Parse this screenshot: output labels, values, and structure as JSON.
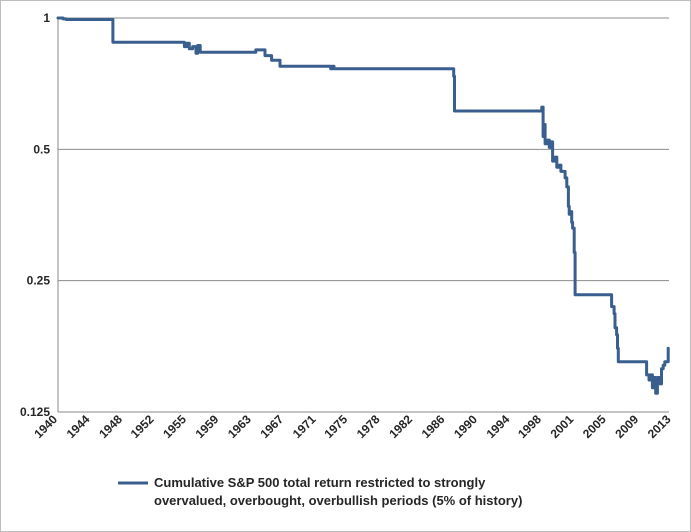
{
  "chart_data": {
    "type": "line",
    "title": "",
    "xlabel": "",
    "ylabel": "",
    "y_scale": "log2",
    "ylim": [
      0.125,
      1
    ],
    "xlim": [
      1940,
      2013.5
    ],
    "grid": "horizontal",
    "legend_position": "bottom",
    "y_ticks": [
      {
        "value": 1,
        "label": "1"
      },
      {
        "value": 0.5,
        "label": "0.5"
      },
      {
        "value": 0.25,
        "label": "0.25"
      },
      {
        "value": 0.125,
        "label": "0.125"
      }
    ],
    "x_ticks": [
      {
        "value": 1940.0,
        "label": "1940"
      },
      {
        "value": 1943.9,
        "label": "1944"
      },
      {
        "value": 1947.8,
        "label": "1948"
      },
      {
        "value": 1951.6,
        "label": "1952"
      },
      {
        "value": 1955.5,
        "label": "1955"
      },
      {
        "value": 1959.4,
        "label": "1959"
      },
      {
        "value": 1963.3,
        "label": "1963"
      },
      {
        "value": 1967.2,
        "label": "1967"
      },
      {
        "value": 1971.1,
        "label": "1971"
      },
      {
        "value": 1974.9,
        "label": "1975"
      },
      {
        "value": 1978.8,
        "label": "1978"
      },
      {
        "value": 1982.7,
        "label": "1982"
      },
      {
        "value": 1986.6,
        "label": "1986"
      },
      {
        "value": 1990.5,
        "label": "1990"
      },
      {
        "value": 1994.4,
        "label": "1994"
      },
      {
        "value": 1998.2,
        "label": "1998"
      },
      {
        "value": 2002.1,
        "label": "2001"
      },
      {
        "value": 2006.0,
        "label": "2005"
      },
      {
        "value": 2009.9,
        "label": "2009"
      },
      {
        "value": 2013.8,
        "label": "2013"
      }
    ],
    "series": [
      {
        "name": "Cumulative S&P 500 total return restricted to strongly overvalued, overbought, overbullish periods (5% of history)",
        "color": "#3a5f8f",
        "points": [
          [
            1940.0,
            1.0
          ],
          [
            1940.6,
            0.995
          ],
          [
            1941.0,
            0.992
          ],
          [
            1946.5,
            0.992
          ],
          [
            1946.6,
            0.88
          ],
          [
            1955.0,
            0.88
          ],
          [
            1955.2,
            0.86
          ],
          [
            1955.5,
            0.875
          ],
          [
            1955.8,
            0.85
          ],
          [
            1956.2,
            0.86
          ],
          [
            1956.6,
            0.83
          ],
          [
            1956.8,
            0.865
          ],
          [
            1957.1,
            0.835
          ],
          [
            1963.6,
            0.835
          ],
          [
            1963.8,
            0.845
          ],
          [
            1964.7,
            0.845
          ],
          [
            1964.9,
            0.82
          ],
          [
            1965.5,
            0.82
          ],
          [
            1965.7,
            0.8
          ],
          [
            1966.5,
            0.8
          ],
          [
            1966.7,
            0.775
          ],
          [
            1972.6,
            0.775
          ],
          [
            1972.8,
            0.765
          ],
          [
            1973.0,
            0.775
          ],
          [
            1973.2,
            0.765
          ],
          [
            1987.4,
            0.765
          ],
          [
            1987.6,
            0.735
          ],
          [
            1987.7,
            0.612
          ],
          [
            1998.1,
            0.612
          ],
          [
            1998.2,
            0.625
          ],
          [
            1998.35,
            0.535
          ],
          [
            1998.5,
            0.57
          ],
          [
            1998.6,
            0.515
          ],
          [
            1998.9,
            0.525
          ],
          [
            1999.1,
            0.505
          ],
          [
            1999.3,
            0.52
          ],
          [
            1999.5,
            0.47
          ],
          [
            1999.8,
            0.48
          ],
          [
            2000.0,
            0.455
          ],
          [
            2000.3,
            0.46
          ],
          [
            2000.5,
            0.445
          ],
          [
            2000.8,
            0.445
          ],
          [
            2001.0,
            0.43
          ],
          [
            2001.2,
            0.41
          ],
          [
            2001.4,
            0.37
          ],
          [
            2001.5,
            0.355
          ],
          [
            2001.6,
            0.36
          ],
          [
            2001.8,
            0.34
          ],
          [
            2001.9,
            0.33
          ],
          [
            2002.1,
            0.29
          ],
          [
            2002.2,
            0.232
          ],
          [
            2006.4,
            0.232
          ],
          [
            2006.6,
            0.218
          ],
          [
            2006.9,
            0.21
          ],
          [
            2007.0,
            0.195
          ],
          [
            2007.2,
            0.188
          ],
          [
            2007.3,
            0.175
          ],
          [
            2007.4,
            0.163
          ],
          [
            2010.7,
            0.163
          ],
          [
            2010.8,
            0.152
          ],
          [
            2011.1,
            0.148
          ],
          [
            2011.3,
            0.152
          ],
          [
            2011.5,
            0.142
          ],
          [
            2011.7,
            0.15
          ],
          [
            2011.9,
            0.138
          ],
          [
            2012.1,
            0.15
          ],
          [
            2012.4,
            0.145
          ],
          [
            2012.6,
            0.157
          ],
          [
            2012.8,
            0.16
          ],
          [
            2013.0,
            0.163
          ],
          [
            2013.2,
            0.163
          ],
          [
            2013.4,
            0.175
          ]
        ]
      }
    ]
  },
  "legend": {
    "line1": "Cumulative S&P 500 total return restricted to strongly",
    "line2": "overvalued, overbought, overbullish periods (5% of history)"
  }
}
